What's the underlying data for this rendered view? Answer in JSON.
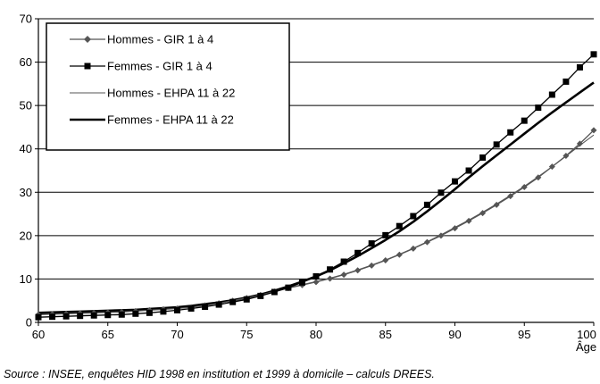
{
  "chart_data": {
    "type": "line",
    "title": "",
    "xlabel": "Âge",
    "ylabel": "",
    "xlim": [
      60,
      100
    ],
    "ylim": [
      0,
      70
    ],
    "x_ticks": [
      60,
      65,
      70,
      75,
      80,
      85,
      90,
      95,
      100
    ],
    "y_ticks": [
      0,
      10,
      20,
      30,
      40,
      50,
      60,
      70
    ],
    "grid": "horizontal",
    "legend_position": "top-left",
    "x": [
      60,
      61,
      62,
      63,
      64,
      65,
      66,
      67,
      68,
      69,
      70,
      71,
      72,
      73,
      74,
      75,
      76,
      77,
      78,
      79,
      80,
      81,
      82,
      83,
      84,
      85,
      86,
      87,
      88,
      89,
      90,
      91,
      92,
      93,
      94,
      95,
      96,
      97,
      98,
      99,
      100
    ],
    "series": [
      {
        "name": "Hommes - GIR 1 à 4",
        "style": "line-diamond-markers",
        "color": "#555555",
        "values": [
          1.8,
          1.9,
          2.0,
          2.1,
          2.2,
          2.3,
          2.4,
          2.6,
          2.8,
          3.0,
          3.2,
          3.5,
          3.9,
          4.4,
          5.0,
          5.6,
          6.3,
          7.1,
          7.9,
          8.6,
          9.3,
          10.1,
          11.0,
          12.0,
          13.1,
          14.3,
          15.6,
          17.0,
          18.5,
          20.0,
          21.7,
          23.4,
          25.2,
          27.1,
          29.1,
          31.2,
          33.4,
          35.9,
          38.4,
          41.2,
          44.3
        ]
      },
      {
        "name": "Femmes - GIR 1 à 4",
        "style": "line-square-markers",
        "color": "#000000",
        "values": [
          1.2,
          1.3,
          1.4,
          1.5,
          1.6,
          1.7,
          1.8,
          2.0,
          2.2,
          2.5,
          2.8,
          3.2,
          3.6,
          4.1,
          4.7,
          5.3,
          6.1,
          7.0,
          8.0,
          9.2,
          10.6,
          12.2,
          14.0,
          16.0,
          18.2,
          20.1,
          22.2,
          24.5,
          27.1,
          29.9,
          32.5,
          35.0,
          38.0,
          41.0,
          43.8,
          46.5,
          49.5,
          52.5,
          55.5,
          58.8,
          61.8
        ]
      },
      {
        "name": "Hommes - EHPA 11 à 22",
        "style": "thin-line",
        "color": "#555555",
        "values": [
          2.0,
          2.1,
          2.2,
          2.3,
          2.4,
          2.5,
          2.6,
          2.8,
          3.0,
          3.2,
          3.4,
          3.7,
          4.1,
          4.6,
          5.1,
          5.7,
          6.4,
          7.2,
          8.0,
          8.7,
          9.4,
          10.2,
          11.1,
          12.1,
          13.2,
          14.4,
          15.7,
          17.1,
          18.6,
          20.2,
          21.9,
          23.6,
          25.4,
          27.3,
          29.3,
          31.4,
          33.6,
          35.9,
          38.3,
          40.8,
          43.2
        ]
      },
      {
        "name": "Femmes - EHPA 11 à 22",
        "style": "thick-line",
        "color": "#000000",
        "values": [
          2.2,
          2.3,
          2.4,
          2.5,
          2.6,
          2.7,
          2.8,
          2.9,
          3.1,
          3.3,
          3.5,
          3.8,
          4.2,
          4.6,
          5.1,
          5.7,
          6.4,
          7.3,
          8.3,
          9.4,
          10.6,
          12.0,
          13.6,
          15.3,
          17.1,
          19.0,
          21.0,
          23.2,
          25.6,
          28.1,
          30.7,
          33.4,
          36.0,
          38.5,
          41.0,
          43.5,
          46.0,
          48.4,
          50.7,
          53.0,
          55.3
        ]
      }
    ],
    "source": "Source : INSEE, enquêtes HID 1998 en institution et 1999 à domicile – calculs DREES."
  }
}
